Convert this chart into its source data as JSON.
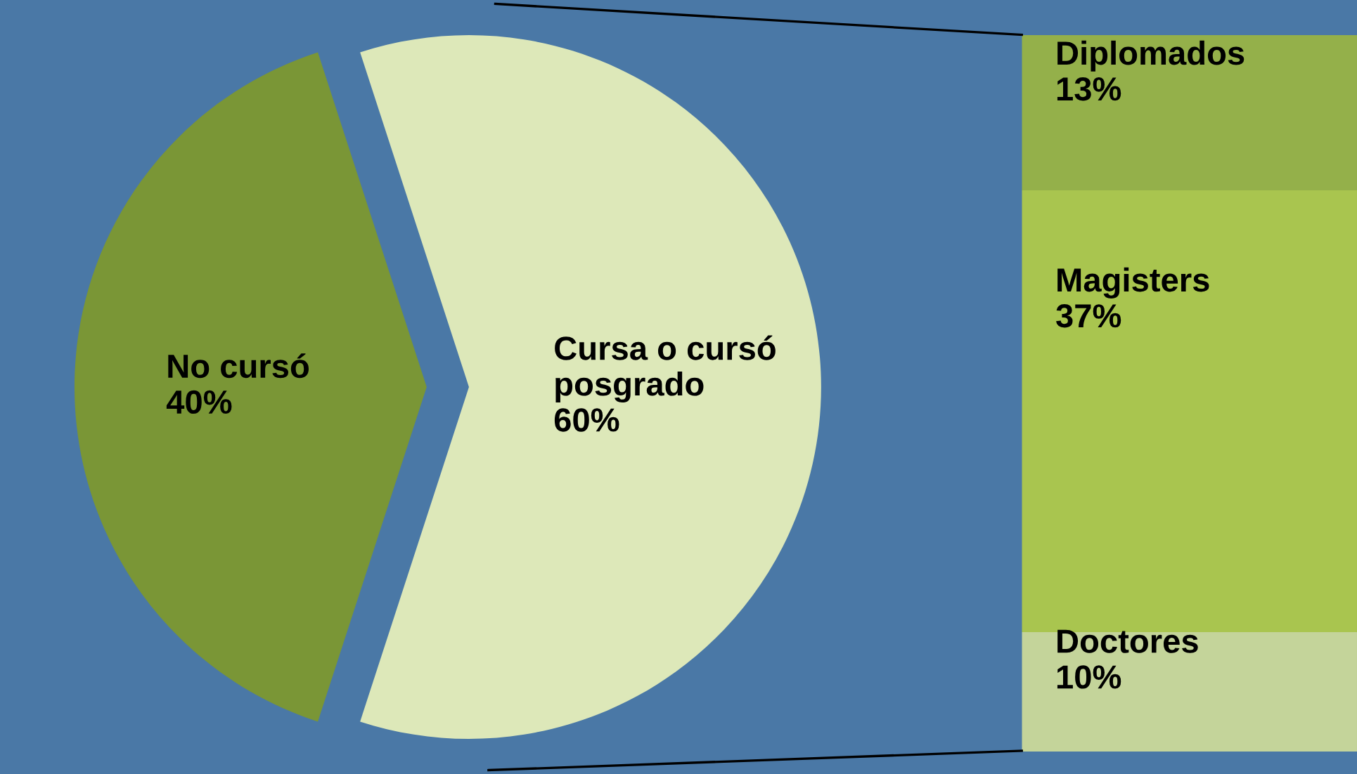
{
  "chart_data": [
    {
      "type": "pie",
      "categories": [
        "No cursó",
        "Cursa o cursó\nposgrado"
      ],
      "values": [
        40,
        60
      ],
      "colors": [
        "#7a9636",
        "#dde8b9"
      ],
      "value_labels": [
        "40%",
        "60%"
      ],
      "legend": false
    },
    {
      "type": "bar",
      "stacked": true,
      "categories": [
        null
      ],
      "legend": false,
      "series": [
        {
          "name": "Doctores",
          "color": "#c4d49a",
          "values": [
            10
          ],
          "value_labels": [
            "10%"
          ]
        },
        {
          "name": "Magisters",
          "color": "#a9c54f",
          "values": [
            37
          ],
          "value_labels": [
            "37%"
          ]
        },
        {
          "name": "Diplomados",
          "color": "#94b04a",
          "values": [
            13
          ],
          "value_labels": [
            "13%"
          ]
        }
      ]
    }
  ]
}
